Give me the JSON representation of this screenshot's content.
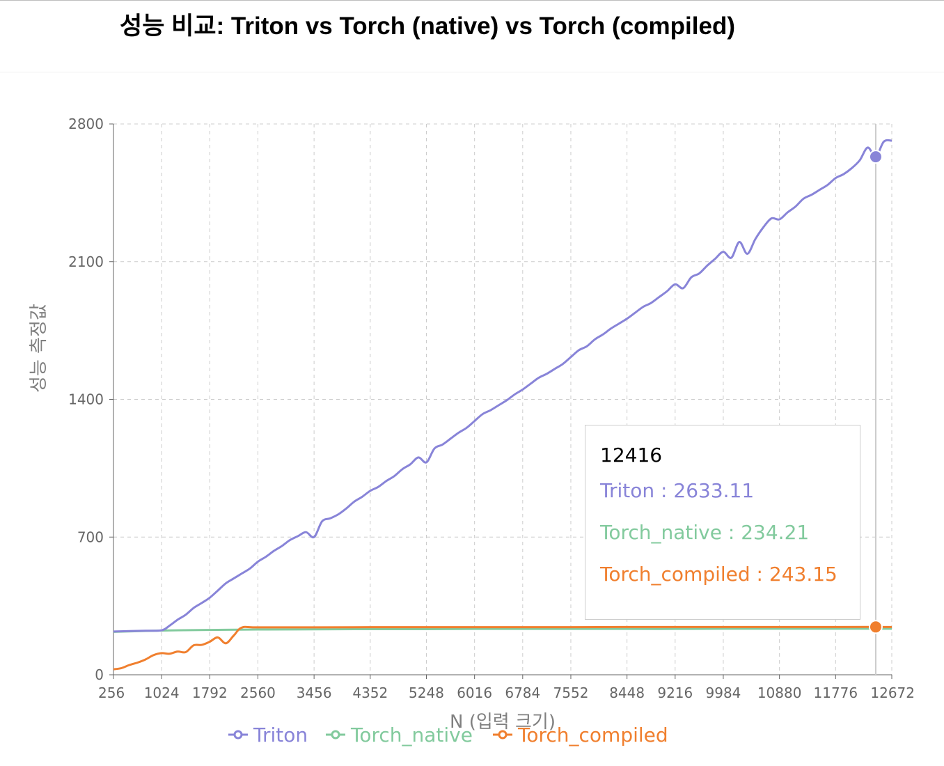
{
  "page": {
    "title": "성능 비교: Triton vs Torch (native) vs Torch (compiled)"
  },
  "colors": {
    "triton": "#8884d8",
    "torch_native": "#82ca9d",
    "torch_compiled": "#f07f2e",
    "grid": "#cccccc",
    "axis": "#666666"
  },
  "tooltip": {
    "label": "12416",
    "items": [
      {
        "name": "Triton",
        "value": "2633.11",
        "color": "#8884d8"
      },
      {
        "name": "Torch_native",
        "value": "234.21",
        "color": "#82ca9d"
      },
      {
        "name": "Torch_compiled",
        "value": "243.15",
        "color": "#f07f2e"
      }
    ]
  },
  "chart_data": {
    "type": "line",
    "title": "",
    "xlabel": "N (입력 크기)",
    "ylabel": "성능 측정값",
    "x_tick_labels": [
      "256",
      "1024",
      "1792",
      "2560",
      "3456",
      "4352",
      "5248",
      "6016",
      "6784",
      "7552",
      "8448",
      "9216",
      "9984",
      "10880",
      "11776",
      "12672"
    ],
    "xlim": [
      256,
      12672
    ],
    "ylim": [
      0,
      2800
    ],
    "y_ticks": [
      0,
      700,
      1400,
      2100,
      2800
    ],
    "grid": true,
    "legend_position": "bottom",
    "active_x": 12416,
    "series": [
      {
        "name": "Triton",
        "color": "#8884d8",
        "points": [
          [
            256,
            220
          ],
          [
            512,
            222
          ],
          [
            768,
            224
          ],
          [
            1024,
            226
          ],
          [
            1152,
            250
          ],
          [
            1280,
            280
          ],
          [
            1408,
            305
          ],
          [
            1536,
            340
          ],
          [
            1664,
            365
          ],
          [
            1792,
            392
          ],
          [
            1920,
            428
          ],
          [
            2048,
            465
          ],
          [
            2176,
            490
          ],
          [
            2304,
            515
          ],
          [
            2432,
            540
          ],
          [
            2560,
            575
          ],
          [
            2688,
            600
          ],
          [
            2816,
            630
          ],
          [
            2944,
            655
          ],
          [
            3072,
            685
          ],
          [
            3200,
            705
          ],
          [
            3328,
            725
          ],
          [
            3456,
            700
          ],
          [
            3584,
            780
          ],
          [
            3712,
            795
          ],
          [
            3840,
            815
          ],
          [
            3968,
            845
          ],
          [
            4096,
            880
          ],
          [
            4224,
            905
          ],
          [
            4352,
            935
          ],
          [
            4480,
            955
          ],
          [
            4608,
            985
          ],
          [
            4736,
            1010
          ],
          [
            4864,
            1045
          ],
          [
            4992,
            1070
          ],
          [
            5120,
            1105
          ],
          [
            5248,
            1080
          ],
          [
            5376,
            1150
          ],
          [
            5504,
            1170
          ],
          [
            5632,
            1200
          ],
          [
            5760,
            1230
          ],
          [
            5888,
            1255
          ],
          [
            6016,
            1290
          ],
          [
            6144,
            1325
          ],
          [
            6272,
            1345
          ],
          [
            6400,
            1370
          ],
          [
            6528,
            1395
          ],
          [
            6656,
            1425
          ],
          [
            6784,
            1450
          ],
          [
            6912,
            1480
          ],
          [
            7040,
            1510
          ],
          [
            7168,
            1530
          ],
          [
            7296,
            1555
          ],
          [
            7424,
            1580
          ],
          [
            7552,
            1615
          ],
          [
            7680,
            1650
          ],
          [
            7808,
            1670
          ],
          [
            7936,
            1705
          ],
          [
            8064,
            1730
          ],
          [
            8192,
            1760
          ],
          [
            8320,
            1785
          ],
          [
            8448,
            1810
          ],
          [
            8576,
            1840
          ],
          [
            8704,
            1870
          ],
          [
            8832,
            1890
          ],
          [
            8960,
            1920
          ],
          [
            9088,
            1950
          ],
          [
            9216,
            1985
          ],
          [
            9344,
            1965
          ],
          [
            9472,
            2020
          ],
          [
            9600,
            2040
          ],
          [
            9728,
            2080
          ],
          [
            9856,
            2115
          ],
          [
            9984,
            2150
          ],
          [
            10112,
            2120
          ],
          [
            10240,
            2200
          ],
          [
            10368,
            2140
          ],
          [
            10496,
            2215
          ],
          [
            10624,
            2275
          ],
          [
            10752,
            2320
          ],
          [
            10880,
            2315
          ],
          [
            11008,
            2350
          ],
          [
            11136,
            2380
          ],
          [
            11264,
            2420
          ],
          [
            11392,
            2440
          ],
          [
            11520,
            2465
          ],
          [
            11648,
            2490
          ],
          [
            11776,
            2525
          ],
          [
            11904,
            2545
          ],
          [
            12032,
            2575
          ],
          [
            12160,
            2615
          ],
          [
            12288,
            2680
          ],
          [
            12416,
            2633.11
          ],
          [
            12544,
            2710
          ],
          [
            12672,
            2715
          ]
        ]
      },
      {
        "name": "Torch_native",
        "color": "#82ca9d",
        "points": [
          [
            256,
            218
          ],
          [
            1024,
            225
          ],
          [
            1792,
            228
          ],
          [
            2560,
            230
          ],
          [
            3456,
            231
          ],
          [
            4352,
            232
          ],
          [
            5248,
            232
          ],
          [
            6016,
            233
          ],
          [
            6784,
            233
          ],
          [
            7552,
            233
          ],
          [
            8448,
            233
          ],
          [
            9216,
            233
          ],
          [
            9984,
            234
          ],
          [
            10880,
            234
          ],
          [
            11776,
            234
          ],
          [
            12416,
            234.21
          ],
          [
            12672,
            234
          ]
        ]
      },
      {
        "name": "Torch_compiled",
        "color": "#f07f2e",
        "points": [
          [
            256,
            28
          ],
          [
            384,
            34
          ],
          [
            512,
            50
          ],
          [
            640,
            62
          ],
          [
            768,
            78
          ],
          [
            896,
            100
          ],
          [
            1024,
            110
          ],
          [
            1152,
            107
          ],
          [
            1280,
            118
          ],
          [
            1408,
            115
          ],
          [
            1536,
            150
          ],
          [
            1664,
            152
          ],
          [
            1792,
            168
          ],
          [
            1920,
            190
          ],
          [
            2048,
            160
          ],
          [
            2176,
            200
          ],
          [
            2304,
            240
          ],
          [
            2560,
            241
          ],
          [
            3456,
            241
          ],
          [
            4352,
            242
          ],
          [
            5248,
            242
          ],
          [
            6016,
            242
          ],
          [
            6784,
            242
          ],
          [
            7552,
            242
          ],
          [
            8448,
            243
          ],
          [
            9216,
            243
          ],
          [
            9984,
            243
          ],
          [
            10880,
            243
          ],
          [
            11776,
            243
          ],
          [
            12416,
            243.15
          ],
          [
            12672,
            243
          ]
        ]
      }
    ]
  }
}
